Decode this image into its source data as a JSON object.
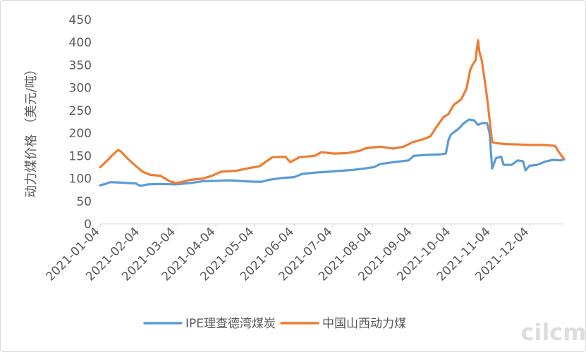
{
  "chart_data": {
    "type": "line",
    "title": "",
    "xlabel": "",
    "ylabel": "动力煤价格 （美元/吨）",
    "ylim": [
      0,
      450
    ],
    "yticks": [
      0,
      50,
      100,
      150,
      200,
      250,
      300,
      350,
      400,
      450
    ],
    "xlim": [
      "2021-01-04",
      "2021-12-31"
    ],
    "xticks": [
      "2021-01-04",
      "2021-02-04",
      "2021-03-04",
      "2021-04-04",
      "2021-05-04",
      "2021-06-04",
      "2021-07-04",
      "2021-08-04",
      "2021-09-04",
      "2021-10-04",
      "2021-11-04",
      "2021-12-04"
    ],
    "grid": false,
    "legend": "bottom",
    "series": [
      {
        "name": "IPE理查德湾煤炭",
        "color": "#5b9bd5",
        "points": [
          [
            "2021-01-04",
            85
          ],
          [
            "2021-01-08",
            88
          ],
          [
            "2021-01-12",
            92
          ],
          [
            "2021-01-20",
            91
          ],
          [
            "2021-02-01",
            89
          ],
          [
            "2021-02-03",
            85
          ],
          [
            "2021-02-05",
            84
          ],
          [
            "2021-02-10",
            87
          ],
          [
            "2021-02-20",
            88
          ],
          [
            "2021-03-04",
            87
          ],
          [
            "2021-03-15",
            90
          ],
          [
            "2021-03-25",
            94
          ],
          [
            "2021-04-05",
            95
          ],
          [
            "2021-04-15",
            96
          ],
          [
            "2021-04-25",
            94
          ],
          [
            "2021-05-04",
            93
          ],
          [
            "2021-05-10",
            93
          ],
          [
            "2021-05-15",
            97
          ],
          [
            "2021-05-25",
            101
          ],
          [
            "2021-06-04",
            103
          ],
          [
            "2021-06-10",
            110
          ],
          [
            "2021-06-20",
            113
          ],
          [
            "2021-07-01",
            115
          ],
          [
            "2021-07-10",
            117
          ],
          [
            "2021-07-20",
            119
          ],
          [
            "2021-07-28",
            122
          ],
          [
            "2021-08-05",
            125
          ],
          [
            "2021-08-10",
            132
          ],
          [
            "2021-08-20",
            136
          ],
          [
            "2021-09-01",
            140
          ],
          [
            "2021-09-05",
            150
          ],
          [
            "2021-09-15",
            152
          ],
          [
            "2021-09-25",
            153
          ],
          [
            "2021-09-30",
            155
          ],
          [
            "2021-10-02",
            185
          ],
          [
            "2021-10-04",
            197
          ],
          [
            "2021-10-10",
            210
          ],
          [
            "2021-10-14",
            222
          ],
          [
            "2021-10-18",
            230
          ],
          [
            "2021-10-22",
            228
          ],
          [
            "2021-10-25",
            218
          ],
          [
            "2021-10-28",
            222
          ],
          [
            "2021-11-01",
            222
          ],
          [
            "2021-11-03",
            200
          ],
          [
            "2021-11-05",
            122
          ],
          [
            "2021-11-08",
            145
          ],
          [
            "2021-11-12",
            148
          ],
          [
            "2021-11-14",
            130
          ],
          [
            "2021-11-20",
            130
          ],
          [
            "2021-11-25",
            140
          ],
          [
            "2021-11-29",
            138
          ],
          [
            "2021-12-01",
            118
          ],
          [
            "2021-12-04",
            128
          ],
          [
            "2021-12-10",
            130
          ],
          [
            "2021-12-16",
            137
          ],
          [
            "2021-12-22",
            141
          ],
          [
            "2021-12-28",
            140
          ],
          [
            "2021-12-31",
            142
          ]
        ]
      },
      {
        "name": "中国山西动力煤",
        "color": "#ed7d31",
        "points": [
          [
            "2021-01-04",
            125
          ],
          [
            "2021-01-06",
            130
          ],
          [
            "2021-01-09",
            138
          ],
          [
            "2021-01-13",
            150
          ],
          [
            "2021-01-18",
            163
          ],
          [
            "2021-01-20",
            160
          ],
          [
            "2021-01-25",
            145
          ],
          [
            "2021-02-01",
            127
          ],
          [
            "2021-02-06",
            115
          ],
          [
            "2021-02-12",
            108
          ],
          [
            "2021-02-20",
            106
          ],
          [
            "2021-02-27",
            94
          ],
          [
            "2021-03-04",
            90
          ],
          [
            "2021-03-08",
            92
          ],
          [
            "2021-03-15",
            97
          ],
          [
            "2021-03-25",
            100
          ],
          [
            "2021-04-01",
            106
          ],
          [
            "2021-04-08",
            115
          ],
          [
            "2021-04-20",
            117
          ],
          [
            "2021-04-28",
            122
          ],
          [
            "2021-05-04",
            125
          ],
          [
            "2021-05-08",
            127
          ],
          [
            "2021-05-18",
            147
          ],
          [
            "2021-05-28",
            148
          ],
          [
            "2021-06-01",
            136
          ],
          [
            "2021-06-08",
            147
          ],
          [
            "2021-06-20",
            150
          ],
          [
            "2021-06-25",
            158
          ],
          [
            "2021-07-05",
            155
          ],
          [
            "2021-07-15",
            156
          ],
          [
            "2021-07-25",
            161
          ],
          [
            "2021-07-30",
            167
          ],
          [
            "2021-08-10",
            170
          ],
          [
            "2021-08-20",
            166
          ],
          [
            "2021-08-28",
            170
          ],
          [
            "2021-09-04",
            180
          ],
          [
            "2021-09-12",
            186
          ],
          [
            "2021-09-18",
            193
          ],
          [
            "2021-09-23",
            215
          ],
          [
            "2021-09-28",
            235
          ],
          [
            "2021-10-02",
            242
          ],
          [
            "2021-10-06",
            262
          ],
          [
            "2021-10-12",
            275
          ],
          [
            "2021-10-16",
            298
          ],
          [
            "2021-10-19",
            340
          ],
          [
            "2021-10-21",
            352
          ],
          [
            "2021-10-23",
            360
          ],
          [
            "2021-10-25",
            405
          ],
          [
            "2021-10-26",
            380
          ],
          [
            "2021-10-28",
            360
          ],
          [
            "2021-10-30",
            320
          ],
          [
            "2021-11-01",
            280
          ],
          [
            "2021-11-03",
            230
          ],
          [
            "2021-11-05",
            180
          ],
          [
            "2021-11-08",
            178
          ],
          [
            "2021-11-15",
            176
          ],
          [
            "2021-11-25",
            175
          ],
          [
            "2021-12-04",
            174
          ],
          [
            "2021-12-15",
            174
          ],
          [
            "2021-12-24",
            172
          ],
          [
            "2021-12-27",
            158
          ],
          [
            "2021-12-31",
            143
          ]
        ]
      }
    ]
  },
  "watermark": "cilcm"
}
